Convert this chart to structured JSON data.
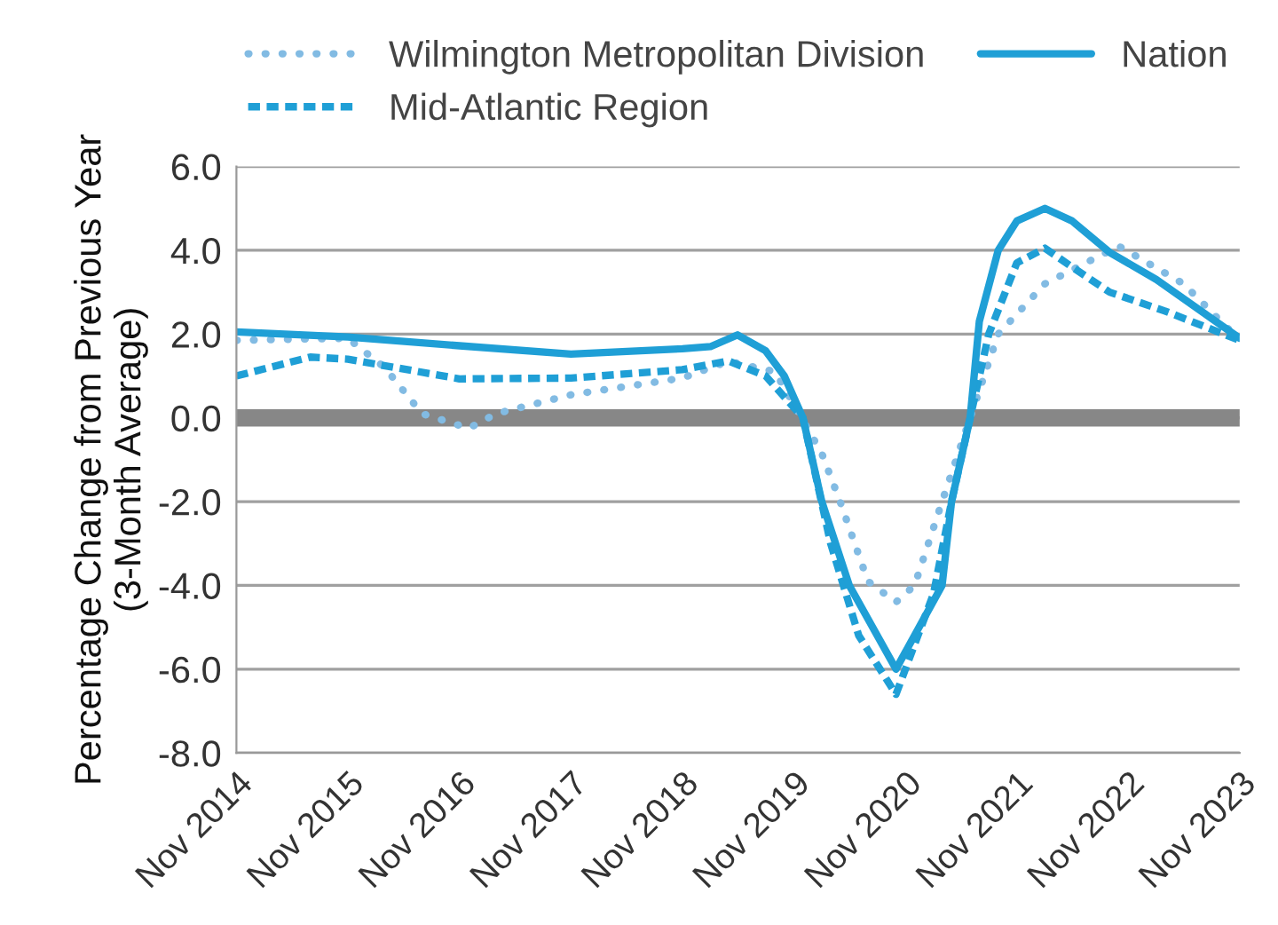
{
  "chart_data": {
    "type": "line",
    "ylabel": "Percentage Change from Previous Year\n(3-Month Average)",
    "xlim": [
      "2014-11",
      "2023-11"
    ],
    "xticks": [
      {
        "value": "2014-11",
        "label": "Nov 2014"
      },
      {
        "value": "2015-11",
        "label": "Nov 2015"
      },
      {
        "value": "2016-11",
        "label": "Nov 2016"
      },
      {
        "value": "2017-11",
        "label": "Nov 2017"
      },
      {
        "value": "2018-11",
        "label": "Nov 2018"
      },
      {
        "value": "2019-11",
        "label": "Nov 2019"
      },
      {
        "value": "2020-11",
        "label": "Nov 2020"
      },
      {
        "value": "2021-11",
        "label": "Nov 2021"
      },
      {
        "value": "2022-11",
        "label": "Nov 2022"
      },
      {
        "value": "2023-11",
        "label": "Nov 2023"
      }
    ],
    "ylim": [
      -8,
      6
    ],
    "yticks": [
      {
        "value": -8,
        "label": "-8.0"
      },
      {
        "value": -6,
        "label": "-6.0"
      },
      {
        "value": -4,
        "label": "-4.0"
      },
      {
        "value": -2,
        "label": "-2.0"
      },
      {
        "value": 0,
        "label": "0.0"
      },
      {
        "value": 2,
        "label": "2.0"
      },
      {
        "value": 4,
        "label": "4.0"
      },
      {
        "value": 6,
        "label": "6.0"
      }
    ],
    "grid": "y",
    "legend": "top",
    "marker": "none",
    "ref_lines": [
      {
        "axis": "y",
        "value": 0,
        "color": "#878787"
      }
    ],
    "series": [
      {
        "name": "Wilmington Metropolitan Division",
        "color": "#82bbe3",
        "line_style": "dotted",
        "x": [
          "2014-11",
          "2015-11",
          "2016-03",
          "2016-07",
          "2016-12",
          "2017-03",
          "2017-11",
          "2018-11",
          "2019-04",
          "2019-09",
          "2020-02",
          "2020-04",
          "2020-07",
          "2020-10",
          "2020-12",
          "2021-03",
          "2021-06",
          "2021-09",
          "2022-02",
          "2022-10",
          "2023-05",
          "2023-11"
        ],
        "values": [
          1.85,
          1.9,
          1.2,
          0.1,
          -0.25,
          0.1,
          0.55,
          0.95,
          1.35,
          1.1,
          -0.85,
          -2.0,
          -3.9,
          -4.4,
          -4.0,
          -2.0,
          0.0,
          2.0,
          3.2,
          4.1,
          3.2,
          1.85
        ]
      },
      {
        "name": "Mid-Atlantic Region",
        "color": "#1f9fd6",
        "line_style": "dashed",
        "x": [
          "2014-11",
          "2015-07",
          "2015-11",
          "2016-11",
          "2017-11",
          "2018-11",
          "2019-04",
          "2019-08",
          "2019-12",
          "2020-03",
          "2020-06",
          "2020-10",
          "2021-02",
          "2021-04",
          "2021-06",
          "2021-08",
          "2021-11",
          "2022-02",
          "2022-05",
          "2022-09",
          "2023-03",
          "2023-11"
        ],
        "values": [
          1.0,
          1.45,
          1.4,
          0.93,
          0.95,
          1.15,
          1.36,
          1.0,
          0.0,
          -3.0,
          -5.2,
          -6.6,
          -4.2,
          -2.0,
          0.0,
          2.0,
          3.7,
          4.05,
          3.6,
          3.0,
          2.55,
          1.85
        ]
      },
      {
        "name": "Nation",
        "color": "#1f9fd6",
        "line_style": "solid",
        "x": [
          "2014-11",
          "2015-11",
          "2016-11",
          "2017-11",
          "2018-11",
          "2019-02",
          "2019-05",
          "2019-08",
          "2019-10",
          "2019-12",
          "2020-02",
          "2020-05",
          "2020-10",
          "2021-03",
          "2021-04",
          "2021-06",
          "2021-07",
          "2021-09",
          "2021-11",
          "2022-02",
          "2022-05",
          "2022-09",
          "2023-02",
          "2023-11"
        ],
        "values": [
          2.05,
          1.93,
          1.72,
          1.52,
          1.65,
          1.7,
          1.98,
          1.6,
          1.0,
          0.0,
          -2.0,
          -4.0,
          -6.0,
          -4.0,
          -2.0,
          0.0,
          2.3,
          4.0,
          4.7,
          5.0,
          4.7,
          3.95,
          3.3,
          1.9
        ]
      }
    ]
  }
}
